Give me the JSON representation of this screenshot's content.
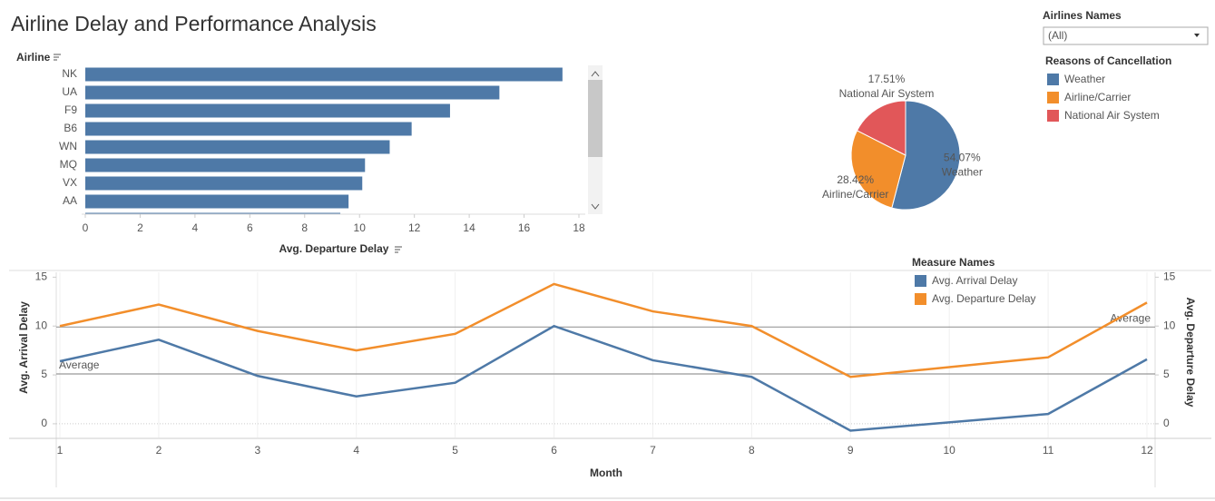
{
  "title": "Airline Delay and Performance Analysis",
  "filter": {
    "label": "Airlines Names",
    "value": "(All)"
  },
  "chart_data": [
    {
      "type": "bar",
      "orientation": "horizontal",
      "y_label": "Airline",
      "x_label": "Avg. Departure Delay",
      "categories": [
        "NK",
        "UA",
        "F9",
        "B6",
        "WN",
        "MQ",
        "VX",
        "AA",
        null
      ],
      "values": [
        17.4,
        15.1,
        13.3,
        11.9,
        11.1,
        10.2,
        10.1,
        9.6,
        9.3
      ],
      "color": "#4e79a7",
      "xlim": [
        0,
        18.5
      ],
      "xticks": [
        0,
        2,
        4,
        6,
        8,
        10,
        12,
        14,
        16,
        18
      ]
    },
    {
      "type": "pie",
      "legend_title": "Reasons of Cancellation",
      "categories": [
        "Weather",
        "Airline/Carrier",
        "National Air System"
      ],
      "values": [
        54.07,
        28.42,
        17.51
      ],
      "value_labels": [
        "54.07%",
        "28.42%",
        "17.51%"
      ],
      "colors": [
        "#4e79a7",
        "#f28e2b",
        "#e15759"
      ]
    },
    {
      "type": "line",
      "x_label": "Month",
      "y_label": "Avg. Arrival Delay",
      "y2_label": "Avg. Departure Delay",
      "legend_title": "Measure Names",
      "x": [
        1,
        2,
        3,
        4,
        5,
        6,
        7,
        8,
        9,
        11,
        12
      ],
      "series": [
        {
          "name": "Avg. Arrival Delay",
          "color": "#4e79a7",
          "values": [
            6.4,
            8.6,
            4.9,
            2.8,
            4.2,
            10.0,
            6.5,
            4.8,
            -0.7,
            1.0,
            6.6
          ]
        },
        {
          "name": "Avg. Departure Delay",
          "color": "#f28e2b",
          "axis": "y2",
          "values": [
            10.0,
            12.2,
            9.5,
            7.5,
            9.2,
            14.3,
            11.5,
            10.0,
            4.8,
            6.8,
            12.4
          ]
        }
      ],
      "reference_lines": [
        {
          "label": "Average",
          "value": 5.1,
          "axis": "y"
        },
        {
          "label": "Average",
          "value": 9.9,
          "axis": "y2"
        }
      ],
      "xlim": [
        1,
        12
      ],
      "xticks": [
        1,
        2,
        3,
        4,
        5,
        6,
        7,
        8,
        9,
        10,
        11,
        12
      ],
      "ylim": [
        -1.4,
        15.5
      ],
      "yticks": [
        0,
        5,
        10,
        15
      ],
      "y2lim": [
        -1.4,
        15.5
      ],
      "y2ticks": [
        0,
        5,
        10,
        15
      ],
      "grid": true
    }
  ]
}
